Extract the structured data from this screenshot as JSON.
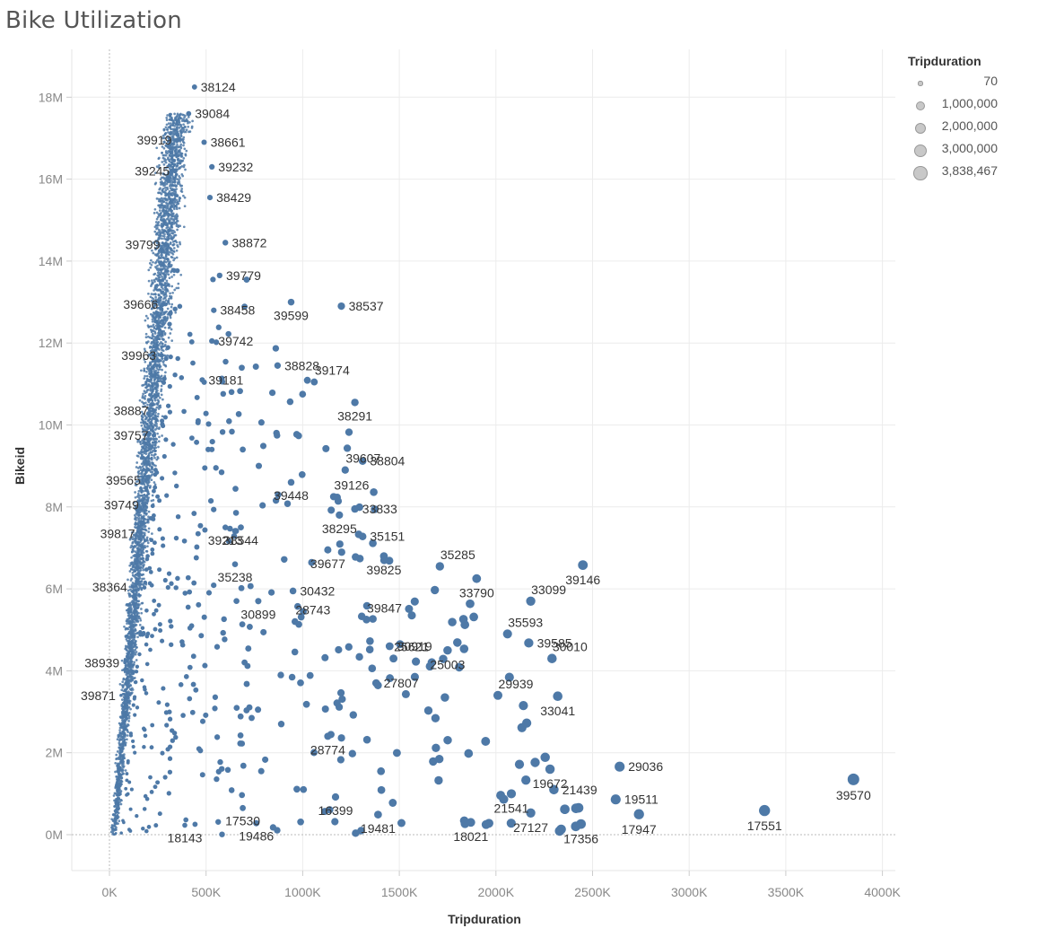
{
  "title": "Bike Utilization",
  "chart_data": {
    "type": "scatter",
    "title": "Bike Utilization",
    "xlabel": "Tripduration",
    "ylabel": "Bikeid",
    "xlim": [
      -200000,
      4050000
    ],
    "ylim": [
      -900000,
      19100000
    ],
    "x_ticks": [
      0,
      500000,
      1000000,
      1500000,
      2000000,
      2500000,
      3000000,
      3500000,
      4000000
    ],
    "x_tick_labels": [
      "0K",
      "500K",
      "1000K",
      "1500K",
      "2000K",
      "2500K",
      "3000K",
      "3500K",
      "4000K"
    ],
    "y_ticks": [
      0,
      2000000,
      4000000,
      6000000,
      8000000,
      10000000,
      12000000,
      14000000,
      16000000,
      18000000
    ],
    "y_tick_labels": [
      "0M",
      "2M",
      "4M",
      "6M",
      "8M",
      "10M",
      "12M",
      "14M",
      "16M",
      "18M"
    ],
    "grid": true,
    "size_field": "Tripduration",
    "point_color": "#4e79a7",
    "labeled_points": [
      {
        "label": "38124",
        "x": 440000,
        "y": 18250000
      },
      {
        "label": "39084",
        "x": 410000,
        "y": 17600000
      },
      {
        "label": "39919",
        "x": 350000,
        "y": 16950000
      },
      {
        "label": "38661",
        "x": 490000,
        "y": 16900000
      },
      {
        "label": "39245",
        "x": 340000,
        "y": 16200000
      },
      {
        "label": "39232",
        "x": 530000,
        "y": 16300000
      },
      {
        "label": "38429",
        "x": 520000,
        "y": 15550000
      },
      {
        "label": "39799",
        "x": 290000,
        "y": 14400000
      },
      {
        "label": "38872",
        "x": 600000,
        "y": 14450000
      },
      {
        "label": "39779",
        "x": 570000,
        "y": 13650000
      },
      {
        "label": "39666",
        "x": 280000,
        "y": 12950000
      },
      {
        "label": "38458",
        "x": 540000,
        "y": 12800000
      },
      {
        "label": "39599",
        "x": 940000,
        "y": 13000000
      },
      {
        "label": "38537",
        "x": 1200000,
        "y": 12900000
      },
      {
        "label": "39742",
        "x": 530000,
        "y": 12050000
      },
      {
        "label": "39963",
        "x": 270000,
        "y": 11700000
      },
      {
        "label": "38828",
        "x": 870000,
        "y": 11450000
      },
      {
        "label": "39181",
        "x": 480000,
        "y": 11100000
      },
      {
        "label": "39174",
        "x": 1060000,
        "y": 11050000
      },
      {
        "label": "38291",
        "x": 1270000,
        "y": 10550000
      },
      {
        "label": "38887",
        "x": 230000,
        "y": 10350000
      },
      {
        "label": "39757",
        "x": 230000,
        "y": 9750000
      },
      {
        "label": "39607",
        "x": 1220000,
        "y": 8900000
      },
      {
        "label": "38804",
        "x": 1310000,
        "y": 9120000
      },
      {
        "label": "39565",
        "x": 190000,
        "y": 8650000
      },
      {
        "label": "39448",
        "x": 940000,
        "y": 8600000
      },
      {
        "label": "39126",
        "x": 1160000,
        "y": 8250000
      },
      {
        "label": "39749",
        "x": 180000,
        "y": 8050000
      },
      {
        "label": "38295",
        "x": 1190000,
        "y": 7800000
      },
      {
        "label": "33833",
        "x": 1270000,
        "y": 7950000
      },
      {
        "label": "39817",
        "x": 160000,
        "y": 7350000
      },
      {
        "label": "39213",
        "x": 600000,
        "y": 7500000
      },
      {
        "label": "38544",
        "x": 680000,
        "y": 7500000
      },
      {
        "label": "35151",
        "x": 1310000,
        "y": 7280000
      },
      {
        "label": "35285",
        "x": 1710000,
        "y": 6550000
      },
      {
        "label": "39677",
        "x": 1130000,
        "y": 6950000
      },
      {
        "label": "35238",
        "x": 650000,
        "y": 6600000
      },
      {
        "label": "39825",
        "x": 1420000,
        "y": 6800000
      },
      {
        "label": "39146",
        "x": 2450000,
        "y": 6580000
      },
      {
        "label": "38364",
        "x": 120000,
        "y": 6050000
      },
      {
        "label": "30899",
        "x": 770000,
        "y": 5700000
      },
      {
        "label": "30432",
        "x": 950000,
        "y": 5950000
      },
      {
        "label": "33790",
        "x": 1900000,
        "y": 6250000
      },
      {
        "label": "33099",
        "x": 2180000,
        "y": 5700000
      },
      {
        "label": "39847",
        "x": 1330000,
        "y": 5250000
      },
      {
        "label": "28743",
        "x": 960000,
        "y": 5200000
      },
      {
        "label": "35593",
        "x": 2060000,
        "y": 4900000
      },
      {
        "label": "30919",
        "x": 1450000,
        "y": 4600000
      },
      {
        "label": "39585",
        "x": 2170000,
        "y": 4680000
      },
      {
        "label": "38939",
        "x": 80000,
        "y": 4200000
      },
      {
        "label": "25621",
        "x": 1470000,
        "y": 4300000
      },
      {
        "label": "25003",
        "x": 1750000,
        "y": 4500000
      },
      {
        "label": "30010",
        "x": 2290000,
        "y": 4300000
      },
      {
        "label": "27807",
        "x": 1380000,
        "y": 3700000
      },
      {
        "label": "39871",
        "x": 60000,
        "y": 3400000
      },
      {
        "label": "29939",
        "x": 2010000,
        "y": 3400000
      },
      {
        "label": "33041",
        "x": 2320000,
        "y": 3380000
      },
      {
        "label": "28774",
        "x": 1130000,
        "y": 2400000
      },
      {
        "label": "19672",
        "x": 2280000,
        "y": 1600000
      },
      {
        "label": "29036",
        "x": 2640000,
        "y": 1660000
      },
      {
        "label": "21541",
        "x": 2080000,
        "y": 1000000
      },
      {
        "label": "21439",
        "x": 2300000,
        "y": 1100000
      },
      {
        "label": "19511",
        "x": 2620000,
        "y": 860000
      },
      {
        "label": "39570",
        "x": 3850000,
        "y": 1350000
      },
      {
        "label": "17530",
        "x": 690000,
        "y": 650000
      },
      {
        "label": "16399",
        "x": 1170000,
        "y": 920000
      },
      {
        "label": "19481",
        "x": 1390000,
        "y": 490000
      },
      {
        "label": "18021",
        "x": 1870000,
        "y": 300000
      },
      {
        "label": "27127",
        "x": 2180000,
        "y": 530000
      },
      {
        "label": "17356",
        "x": 2440000,
        "y": 260000
      },
      {
        "label": "17947",
        "x": 2740000,
        "y": 500000
      },
      {
        "label": "17551",
        "x": 3390000,
        "y": 590000
      },
      {
        "label": "18143",
        "x": 390000,
        "y": 230000
      },
      {
        "label": "19486",
        "x": 760000,
        "y": 280000
      }
    ]
  },
  "legend": {
    "title": "Tripduration",
    "items": [
      "70",
      "1,000,000",
      "2,000,000",
      "3,000,000",
      "3,838,467"
    ]
  }
}
